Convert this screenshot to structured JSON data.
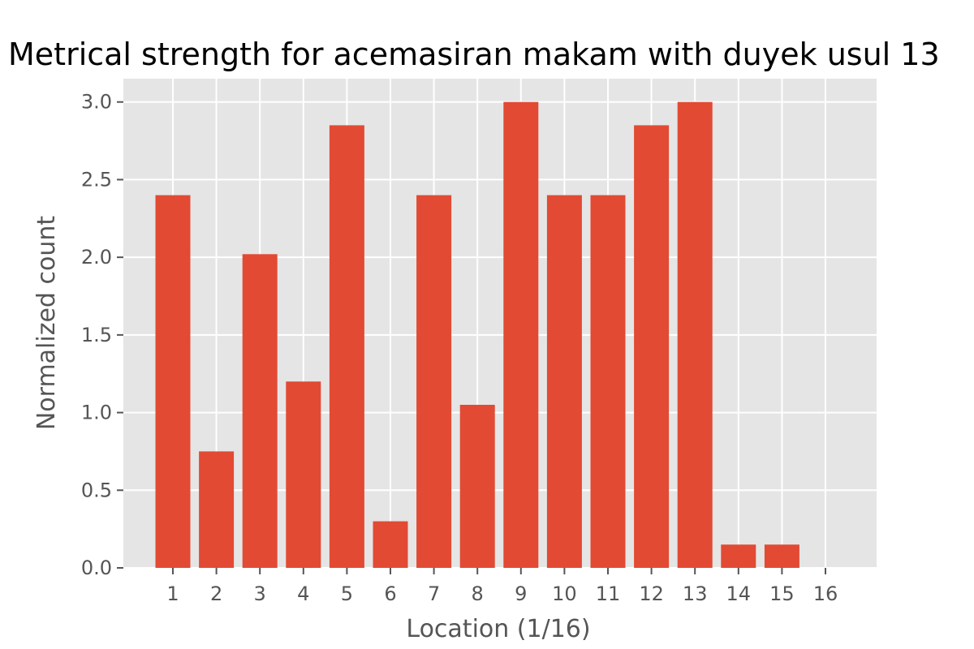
{
  "chart_data": {
    "type": "bar",
    "title": "Metrical strength for acemasiran makam with duyek usul 13",
    "xlabel": "Location (1/16)",
    "ylabel": "Normalized count",
    "categories": [
      "1",
      "2",
      "3",
      "4",
      "5",
      "6",
      "7",
      "8",
      "9",
      "10",
      "11",
      "12",
      "13",
      "14",
      "15",
      "16"
    ],
    "values": [
      2.4,
      0.75,
      2.02,
      1.2,
      2.85,
      0.3,
      2.4,
      1.05,
      3.0,
      2.4,
      2.4,
      2.85,
      3.0,
      0.15,
      0.15,
      0.0
    ],
    "ylim": [
      0,
      3.15
    ],
    "yticks": [
      "0.0",
      "0.5",
      "1.0",
      "1.5",
      "2.0",
      "2.5",
      "3.0"
    ],
    "grid": true,
    "bar_color": "#E24A33",
    "background_color": "#E5E5E5",
    "grid_color": "#FFFFFF"
  }
}
